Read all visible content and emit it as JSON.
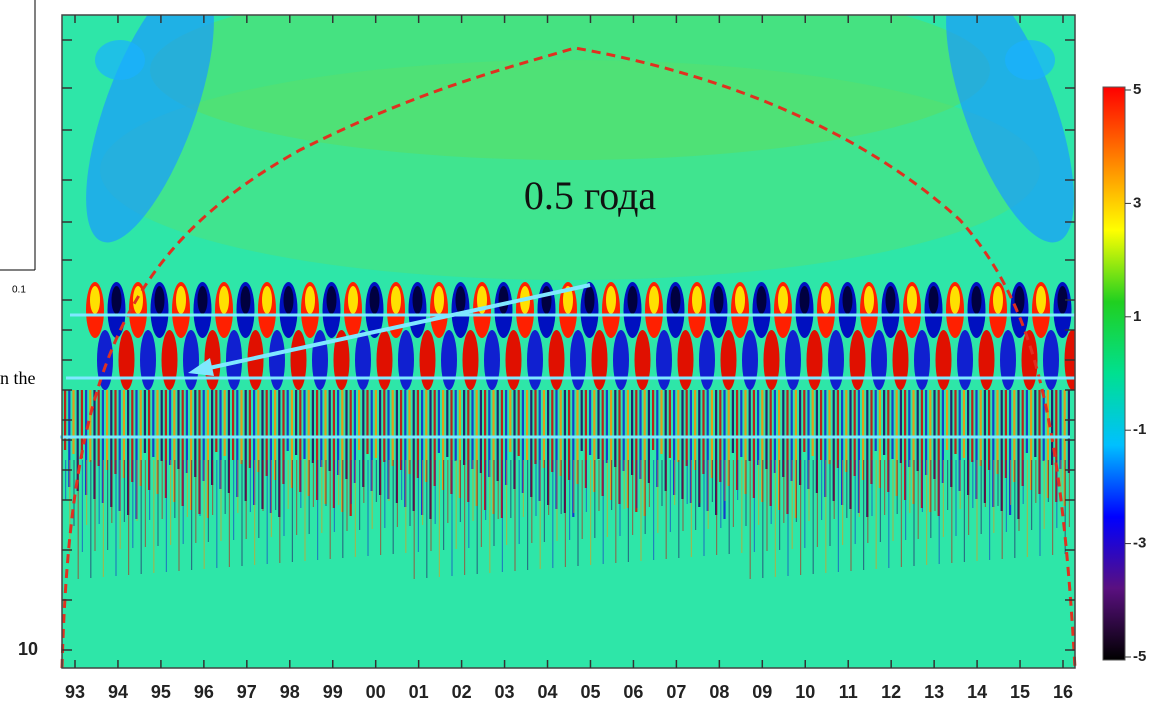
{
  "chart_data": {
    "type": "heatmap",
    "annotation": "0.5 года",
    "categories": [
      "93",
      "94",
      "95",
      "96",
      "97",
      "98",
      "99",
      "00",
      "01",
      "02",
      "03",
      "04",
      "05",
      "06",
      "07",
      "08",
      "09",
      "10",
      "11",
      "12",
      "13",
      "14",
      "15",
      "16"
    ],
    "y_tick_label": "10",
    "colorbar": {
      "lim": [
        -5,
        5
      ],
      "ticks": [
        5,
        3,
        1,
        -1,
        -3,
        -5
      ],
      "colors": [
        "#000000",
        "#5a1080",
        "#0000ff",
        "#00c0ff",
        "#00e090",
        "#20d020",
        "#ffff00",
        "#ff8000",
        "#ff0000"
      ]
    },
    "fragments": {
      "tick_label": "0.1",
      "text": "n the"
    }
  }
}
